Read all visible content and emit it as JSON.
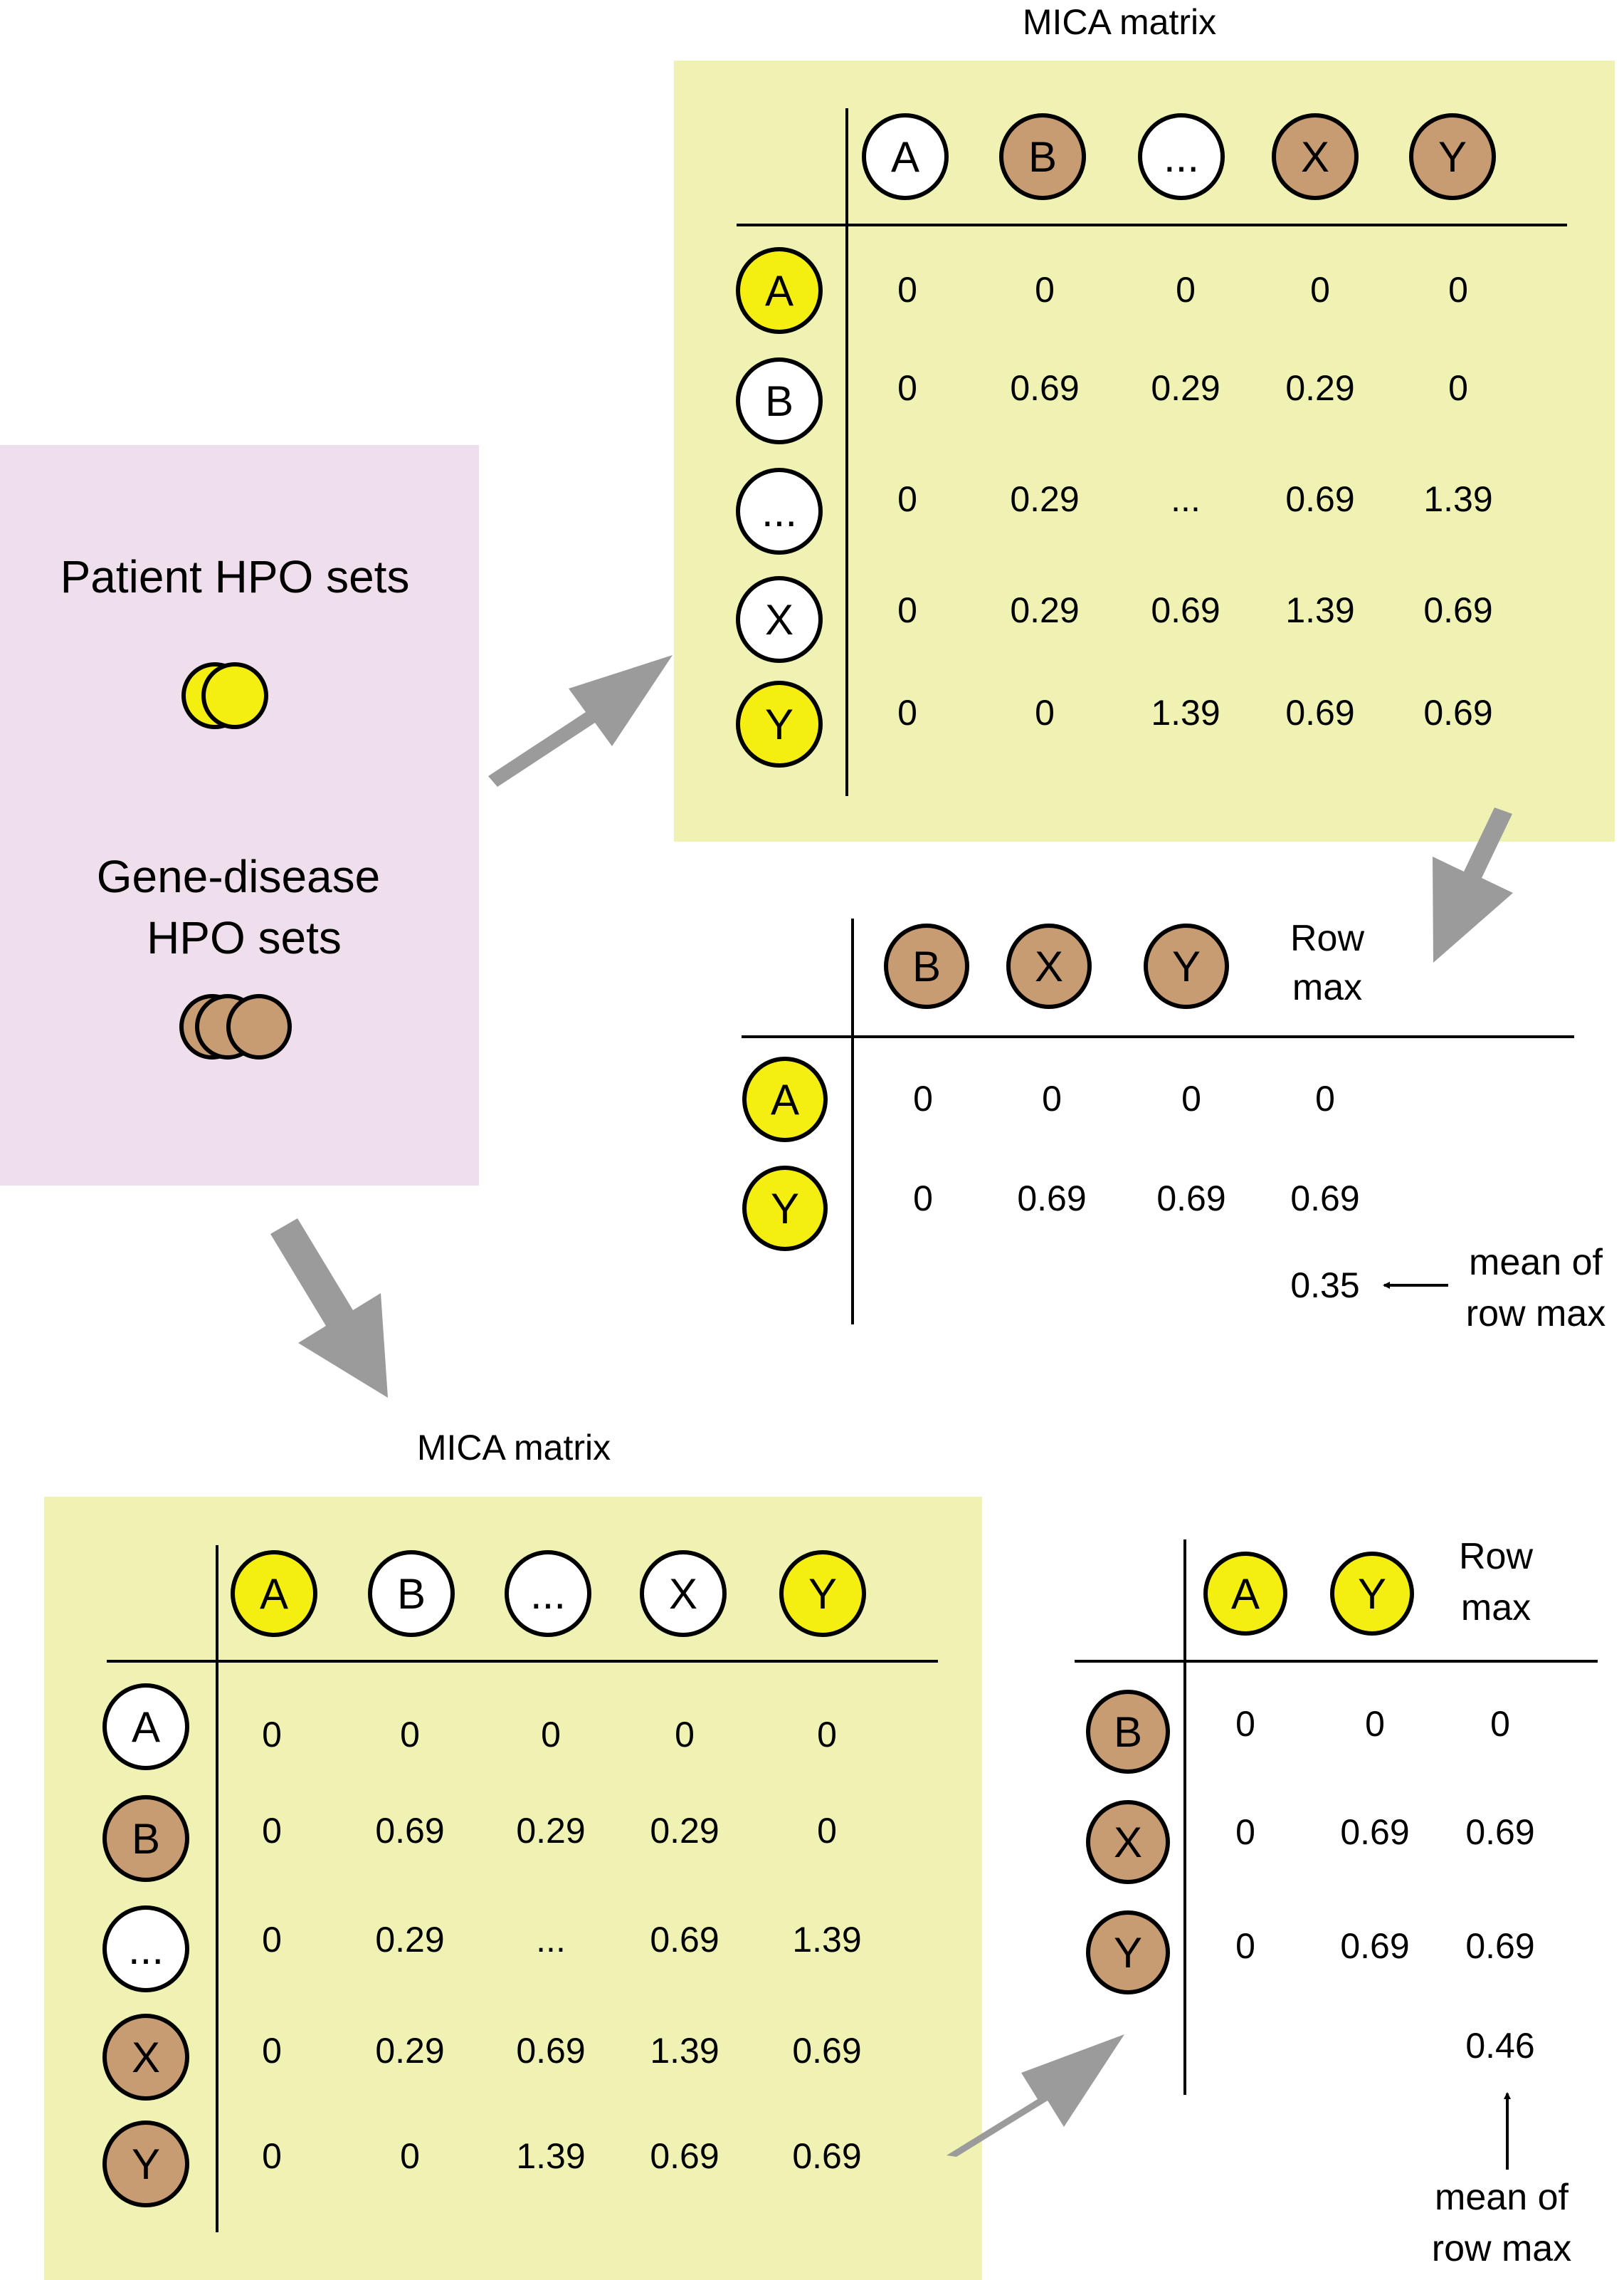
{
  "colors": {
    "panel_left": "#efdfec",
    "panel_matrix": "#eff2b2",
    "yellow": "#f4ee11",
    "brown": "#c89c72",
    "white": "#ffffff",
    "arrow": "#9b9b9b"
  },
  "left_panel": {
    "patient_label": "Patient HPO sets",
    "gene_label_line1": "Gene-disease",
    "gene_label_line2": "HPO sets"
  },
  "matrix_top": {
    "title": "MICA matrix",
    "col_headers": [
      {
        "label": "A",
        "color": "white"
      },
      {
        "label": "B",
        "color": "brown"
      },
      {
        "label": "...",
        "color": "white"
      },
      {
        "label": "X",
        "color": "brown"
      },
      {
        "label": "Y",
        "color": "brown"
      }
    ],
    "row_headers": [
      {
        "label": "A",
        "color": "yellow"
      },
      {
        "label": "B",
        "color": "white"
      },
      {
        "label": "...",
        "color": "white"
      },
      {
        "label": "X",
        "color": "white"
      },
      {
        "label": "Y",
        "color": "yellow"
      }
    ],
    "cells": [
      [
        "0",
        "0",
        "0",
        "0",
        "0"
      ],
      [
        "0",
        "0.69",
        "0.29",
        "0.29",
        "0"
      ],
      [
        "0",
        "0.29",
        "...",
        "0.69",
        "1.39"
      ],
      [
        "0",
        "0.29",
        "0.69",
        "1.39",
        "0.69"
      ],
      [
        "0",
        "0",
        "1.39",
        "0.69",
        "0.69"
      ]
    ]
  },
  "rowmax_top": {
    "col_headers": [
      {
        "label": "B",
        "color": "brown"
      },
      {
        "label": "X",
        "color": "brown"
      },
      {
        "label": "Y",
        "color": "brown"
      }
    ],
    "rowmax_line1": "Row",
    "rowmax_line2": "max",
    "row_headers": [
      {
        "label": "A",
        "color": "yellow"
      },
      {
        "label": "Y",
        "color": "yellow"
      }
    ],
    "cells": [
      [
        "0",
        "0",
        "0",
        "0"
      ],
      [
        "0",
        "0.69",
        "0.69",
        "0.69"
      ]
    ],
    "mean_value": "0.35",
    "mean_label_line1": "mean of",
    "mean_label_line2": "row max"
  },
  "matrix_bottom": {
    "title": "MICA matrix",
    "col_headers": [
      {
        "label": "A",
        "color": "yellow"
      },
      {
        "label": "B",
        "color": "white"
      },
      {
        "label": "...",
        "color": "white"
      },
      {
        "label": "X",
        "color": "white"
      },
      {
        "label": "Y",
        "color": "yellow"
      }
    ],
    "row_headers": [
      {
        "label": "A",
        "color": "white"
      },
      {
        "label": "B",
        "color": "brown"
      },
      {
        "label": "...",
        "color": "white"
      },
      {
        "label": "X",
        "color": "brown"
      },
      {
        "label": "Y",
        "color": "brown"
      }
    ],
    "cells": [
      [
        "0",
        "0",
        "0",
        "0",
        "0"
      ],
      [
        "0",
        "0.69",
        "0.29",
        "0.29",
        "0"
      ],
      [
        "0",
        "0.29",
        "...",
        "0.69",
        "1.39"
      ],
      [
        "0",
        "0.29",
        "0.69",
        "1.39",
        "0.69"
      ],
      [
        "0",
        "0",
        "1.39",
        "0.69",
        "0.69"
      ]
    ]
  },
  "rowmax_bottom": {
    "col_headers": [
      {
        "label": "A",
        "color": "yellow"
      },
      {
        "label": "Y",
        "color": "yellow"
      }
    ],
    "rowmax_line1": "Row",
    "rowmax_line2": "max",
    "row_headers": [
      {
        "label": "B",
        "color": "brown"
      },
      {
        "label": "X",
        "color": "brown"
      },
      {
        "label": "Y",
        "color": "brown"
      }
    ],
    "cells": [
      [
        "0",
        "0",
        "0"
      ],
      [
        "0",
        "0.69",
        "0.69"
      ],
      [
        "0",
        "0.69",
        "0.69"
      ]
    ],
    "mean_value": "0.46",
    "mean_label_line1": "mean of",
    "mean_label_line2": "row max"
  }
}
